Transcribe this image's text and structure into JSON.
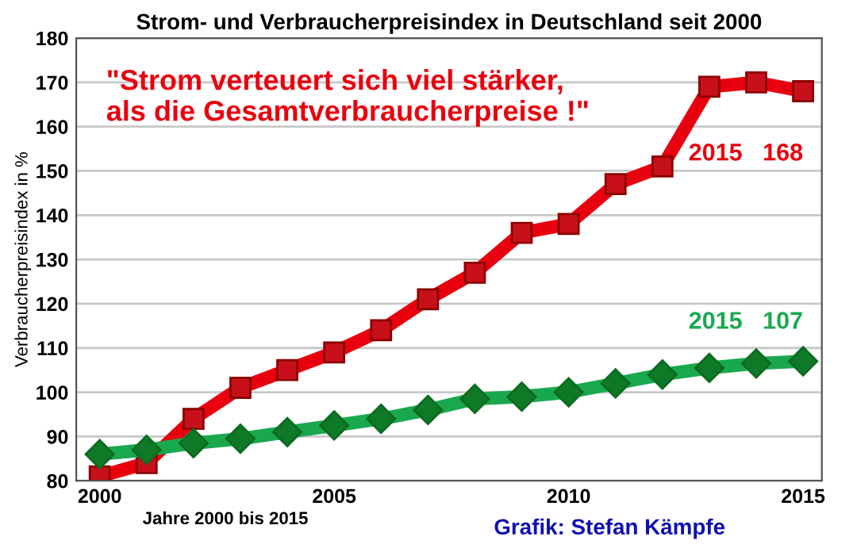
{
  "chart_data": {
    "type": "line",
    "title": "Strom- und Verbraucherpreisindex in Deutschland seit 2000",
    "xlabel": "Jahre 2000 bis 2015",
    "ylabel": "Verbraucherpreisindex in %",
    "x": [
      2000,
      2001,
      2002,
      2003,
      2004,
      2005,
      2006,
      2007,
      2008,
      2009,
      2010,
      2011,
      2012,
      2013,
      2014,
      2015
    ],
    "series": [
      {
        "color": "#e8000e",
        "marker": "square",
        "values": [
          81,
          84,
          94,
          101,
          105,
          109,
          114,
          121,
          127,
          136,
          138,
          147,
          151,
          169,
          170,
          168
        ]
      },
      {
        "color": "#1aa84f",
        "marker": "diamond",
        "values": [
          86,
          87,
          88.5,
          89.5,
          91,
          92.5,
          94,
          96,
          98.5,
          99,
          100,
          102,
          104,
          105.5,
          106.5,
          107
        ]
      }
    ],
    "xlim": [
      1999.5,
      2015.4
    ],
    "xticks": [
      2000,
      2005,
      2010,
      2015
    ],
    "ylim": [
      80,
      180
    ],
    "yticks": [
      80,
      90,
      100,
      110,
      120,
      130,
      140,
      150,
      160,
      170,
      180
    ],
    "grid": "y",
    "legend": false,
    "line_style": "solid",
    "annotations": [
      {
        "text": "2015   168",
        "x": 2015,
        "y": 168
      },
      {
        "text": "2015   107",
        "x": 2015,
        "y": 107
      },
      "\"Strom verteuert sich viel stärker,\nals die Gesamtverbraucherpreise !\"",
      "Grafik: Stefan Kämpfe"
    ]
  }
}
